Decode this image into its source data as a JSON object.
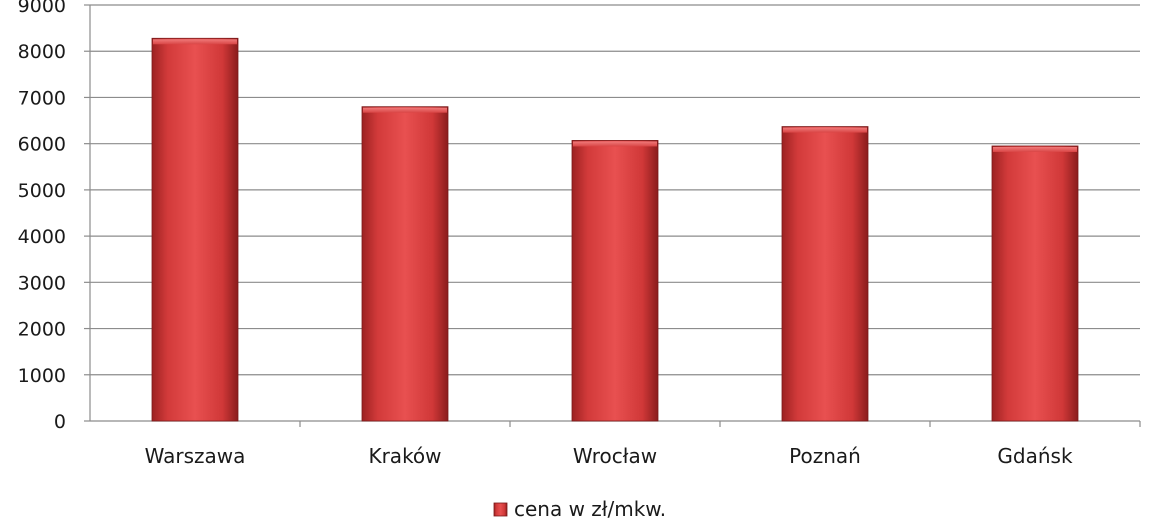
{
  "chart_data": {
    "type": "bar",
    "categories": [
      "Warszawa",
      "Kraków",
      "Wrocław",
      "Poznań",
      "Gdańsk"
    ],
    "series": [
      {
        "name": "cena w zł/mkw.",
        "values": [
          8280,
          6800,
          6070,
          6370,
          5950
        ],
        "color": "#d63c3c"
      }
    ],
    "title": "",
    "xlabel": "",
    "ylabel": "",
    "ylim": [
      0,
      9000
    ],
    "yticks": [
      0,
      1000,
      2000,
      3000,
      4000,
      5000,
      6000,
      7000,
      8000,
      9000
    ],
    "grid": true,
    "legend_position": "bottom"
  }
}
